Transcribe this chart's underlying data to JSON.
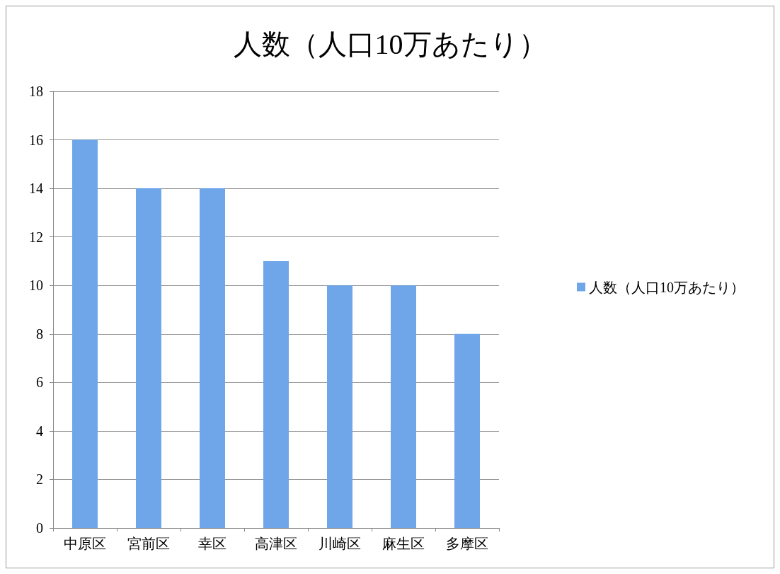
{
  "chart_data": {
    "type": "bar",
    "title": "人数（人口10万あたり）",
    "categories": [
      "中原区",
      "宮前区",
      "幸区",
      "高津区",
      "川崎区",
      "麻生区",
      "多摩区"
    ],
    "series": [
      {
        "name": "人数（人口10万あたり）",
        "color": "#6fa6ea",
        "values": [
          16,
          14,
          14,
          11,
          10,
          10,
          8
        ]
      }
    ],
    "ylim": [
      0,
      18
    ],
    "yticks": [
      0,
      2,
      4,
      6,
      8,
      10,
      12,
      14,
      16,
      18
    ],
    "grid": "y",
    "legend": "right"
  }
}
